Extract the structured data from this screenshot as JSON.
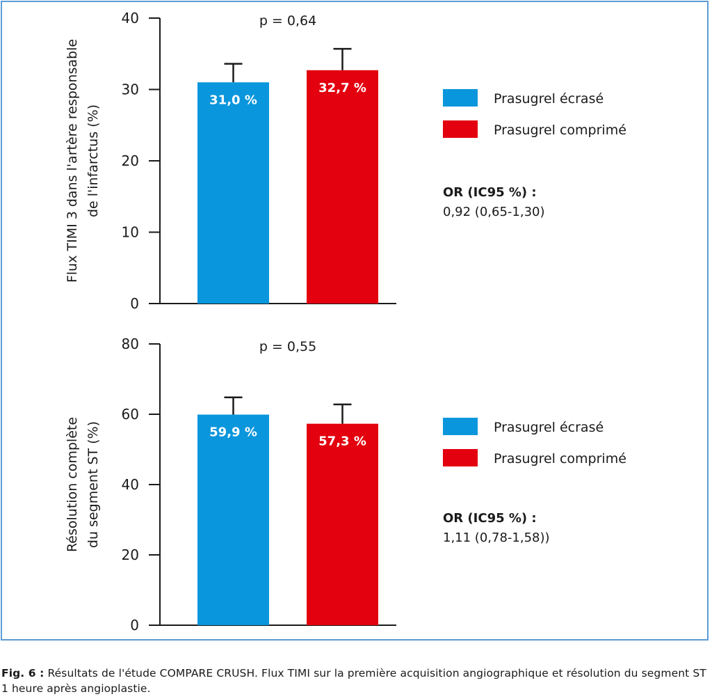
{
  "colors": {
    "series_a": "#0a96dc",
    "series_b": "#e3000f",
    "frame": "#5a9bd5",
    "axis": "#1a1a1a"
  },
  "chart_data": [
    {
      "type": "bar",
      "title": "",
      "ylabel": "Flux TIMI 3 dans l'artère responsable de l'infarctus (%)",
      "ylabel_lines": [
        "Flux TIMI 3 dans l'artère responsable",
        "de l'infarctus (%)"
      ],
      "xlabel": "",
      "ylim": [
        0,
        40
      ],
      "yticks": [
        0,
        10,
        20,
        30,
        40
      ],
      "categories": [
        "Prasugrel écrasé",
        "Prasugrel comprimé"
      ],
      "series": [
        {
          "name": "Prasugrel écrasé",
          "value": 31.0,
          "error_upper": 33.6,
          "label": "31,0 %"
        },
        {
          "name": "Prasugrel comprimé",
          "value": 32.7,
          "error_upper": 35.7,
          "label": "32,7 %"
        }
      ],
      "annotation": "p = 0,64",
      "legend": [
        "Prasugrel écrasé",
        "Prasugrel comprimé"
      ],
      "legend_placement": "right",
      "or_title": "OR (IC95 %) :",
      "or_value": "0,92 (0,65-1,30)",
      "grid": false
    },
    {
      "type": "bar",
      "title": "",
      "ylabel": "Résolution complète du segment ST (%)",
      "ylabel_lines": [
        "Résolution complète",
        "du segment ST (%)"
      ],
      "xlabel": "",
      "ylim": [
        0,
        80
      ],
      "yticks": [
        0,
        20,
        40,
        60,
        80
      ],
      "categories": [
        "Prasugrel écrasé",
        "Prasugrel comprimé"
      ],
      "series": [
        {
          "name": "Prasugrel écrasé",
          "value": 59.9,
          "error_upper": 64.8,
          "label": "59,9 %"
        },
        {
          "name": "Prasugrel comprimé",
          "value": 57.3,
          "error_upper": 62.8,
          "label": "57,3 %"
        }
      ],
      "annotation": "p = 0,55",
      "legend": [
        "Prasugrel écrasé",
        "Prasugrel comprimé"
      ],
      "legend_placement": "right",
      "or_title": "OR (IC95 %) :",
      "or_value": "1,11 (0,78-1,58))",
      "grid": false
    }
  ],
  "caption": {
    "label": "Fig. 6 :",
    "text": "Résultats de l'étude COMPARE CRUSH. Flux TIMI sur la première acquisition angiographique et résolution du segment ST 1 heure après angioplastie."
  }
}
